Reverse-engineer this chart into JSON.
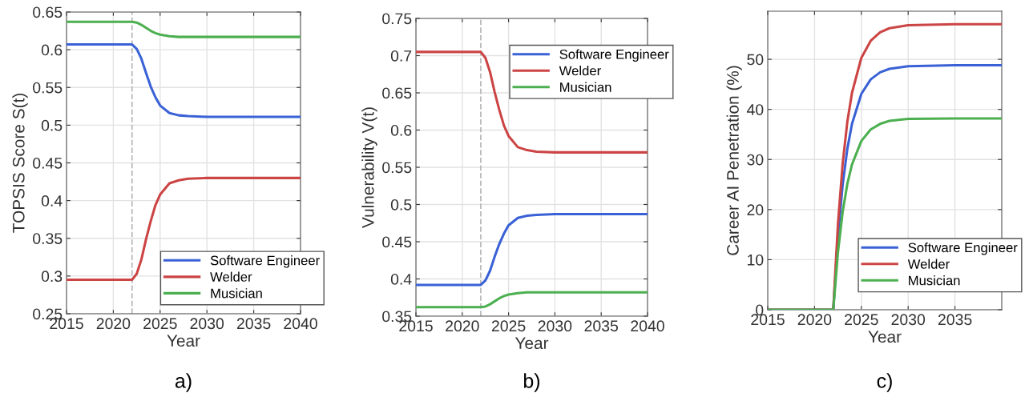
{
  "chart_data": [
    {
      "type": "line",
      "xlabel": "Year",
      "ylabel": "TOPSIS Score S(t)",
      "annotations": [
        "a)"
      ],
      "x": [
        2015,
        2022,
        2022.5,
        2023,
        2023.5,
        2024,
        2024.5,
        2025,
        2026,
        2027,
        2028,
        2030,
        2040
      ],
      "series": [
        {
          "name": "Software Engineer",
          "color": "#3a62d6",
          "values": [
            0.607,
            0.607,
            0.601,
            0.588,
            0.569,
            0.551,
            0.537,
            0.526,
            0.516,
            0.513,
            0.512,
            0.511,
            0.511
          ]
        },
        {
          "name": "Welder",
          "color": "#cc4444",
          "values": [
            0.295,
            0.295,
            0.303,
            0.322,
            0.349,
            0.373,
            0.394,
            0.408,
            0.423,
            0.427,
            0.429,
            0.43,
            0.43
          ]
        },
        {
          "name": "Musician",
          "color": "#4caf50",
          "values": [
            0.637,
            0.637,
            0.636,
            0.633,
            0.629,
            0.625,
            0.622,
            0.62,
            0.618,
            0.617,
            0.617,
            0.617,
            0.617
          ]
        }
      ],
      "xlim": [
        2015,
        2040
      ],
      "xticks": [
        2015,
        2020,
        2025,
        2030,
        2035,
        2040
      ],
      "ylim": [
        0.25,
        0.65
      ],
      "yticks": [
        0.25,
        0.3,
        0.35,
        0.4,
        0.45,
        0.5,
        0.55,
        0.6,
        0.65
      ],
      "ref_lines": [
        {
          "axis": "x",
          "value": 2022,
          "color": "#bbbbbb",
          "line_style": "dashed"
        }
      ],
      "grid": true,
      "legend": "bottom right",
      "line_style": "solid",
      "marker": "none"
    },
    {
      "type": "line",
      "xlabel": "Year",
      "ylabel": "Vulnerability V(t)",
      "annotations": [
        "b)"
      ],
      "x": [
        2015,
        2022,
        2022.5,
        2023,
        2023.5,
        2024,
        2024.5,
        2025,
        2026,
        2027,
        2028,
        2030,
        2040
      ],
      "series": [
        {
          "name": "Software Engineer",
          "color": "#3a62d6",
          "values": [
            0.392,
            0.392,
            0.398,
            0.411,
            0.43,
            0.447,
            0.461,
            0.472,
            0.482,
            0.485,
            0.486,
            0.487,
            0.487
          ]
        },
        {
          "name": "Welder",
          "color": "#cc4444",
          "values": [
            0.705,
            0.705,
            0.697,
            0.678,
            0.651,
            0.627,
            0.606,
            0.592,
            0.577,
            0.573,
            0.571,
            0.57,
            0.57
          ]
        },
        {
          "name": "Musician",
          "color": "#4caf50",
          "values": [
            0.362,
            0.362,
            0.363,
            0.366,
            0.37,
            0.374,
            0.377,
            0.379,
            0.381,
            0.382,
            0.382,
            0.382,
            0.382
          ]
        }
      ],
      "xlim": [
        2015,
        2040
      ],
      "xticks": [
        2015,
        2020,
        2025,
        2030,
        2035,
        2040
      ],
      "ylim": [
        0.35,
        0.75
      ],
      "yticks": [
        0.35,
        0.4,
        0.45,
        0.5,
        0.55,
        0.6,
        0.65,
        0.7,
        0.75
      ],
      "ref_lines": [
        {
          "axis": "x",
          "value": 2022,
          "color": "#bbbbbb",
          "line_style": "dashed"
        }
      ],
      "grid": true,
      "legend": "top right",
      "line_style": "solid",
      "marker": "none"
    },
    {
      "type": "line",
      "xlabel": "Year",
      "ylabel": "Career AI Penetration (%)",
      "annotations": [
        "c)"
      ],
      "x": [
        2015,
        2022,
        2022.5,
        2023,
        2023.5,
        2024,
        2025,
        2026,
        2027,
        2028,
        2030,
        2035,
        2040
      ],
      "series": [
        {
          "name": "Software Engineer",
          "color": "#3a62d6",
          "values": [
            0,
            0,
            14.6,
            24.9,
            32.1,
            37.1,
            43.1,
            46.0,
            47.4,
            48.1,
            48.6,
            48.8,
            48.8
          ]
        },
        {
          "name": "Welder",
          "color": "#cc4444",
          "values": [
            0,
            0,
            17.1,
            29.1,
            37.5,
            43.3,
            50.3,
            53.7,
            55.4,
            56.2,
            56.8,
            57,
            57
          ]
        },
        {
          "name": "Musician",
          "color": "#4caf50",
          "values": [
            0,
            0,
            11.5,
            19.5,
            25.1,
            29.0,
            33.7,
            36.0,
            37.1,
            37.7,
            38.1,
            38.2,
            38.2
          ]
        }
      ],
      "xlim": [
        2015,
        2040
      ],
      "xticks": [
        2015,
        2020,
        2025,
        2030,
        2035
      ],
      "ylim": [
        0,
        59.6
      ],
      "yticks": [
        0,
        10,
        20,
        30,
        40,
        50
      ],
      "grid": true,
      "legend": "bottom right",
      "line_style": "solid",
      "marker": "none"
    }
  ]
}
